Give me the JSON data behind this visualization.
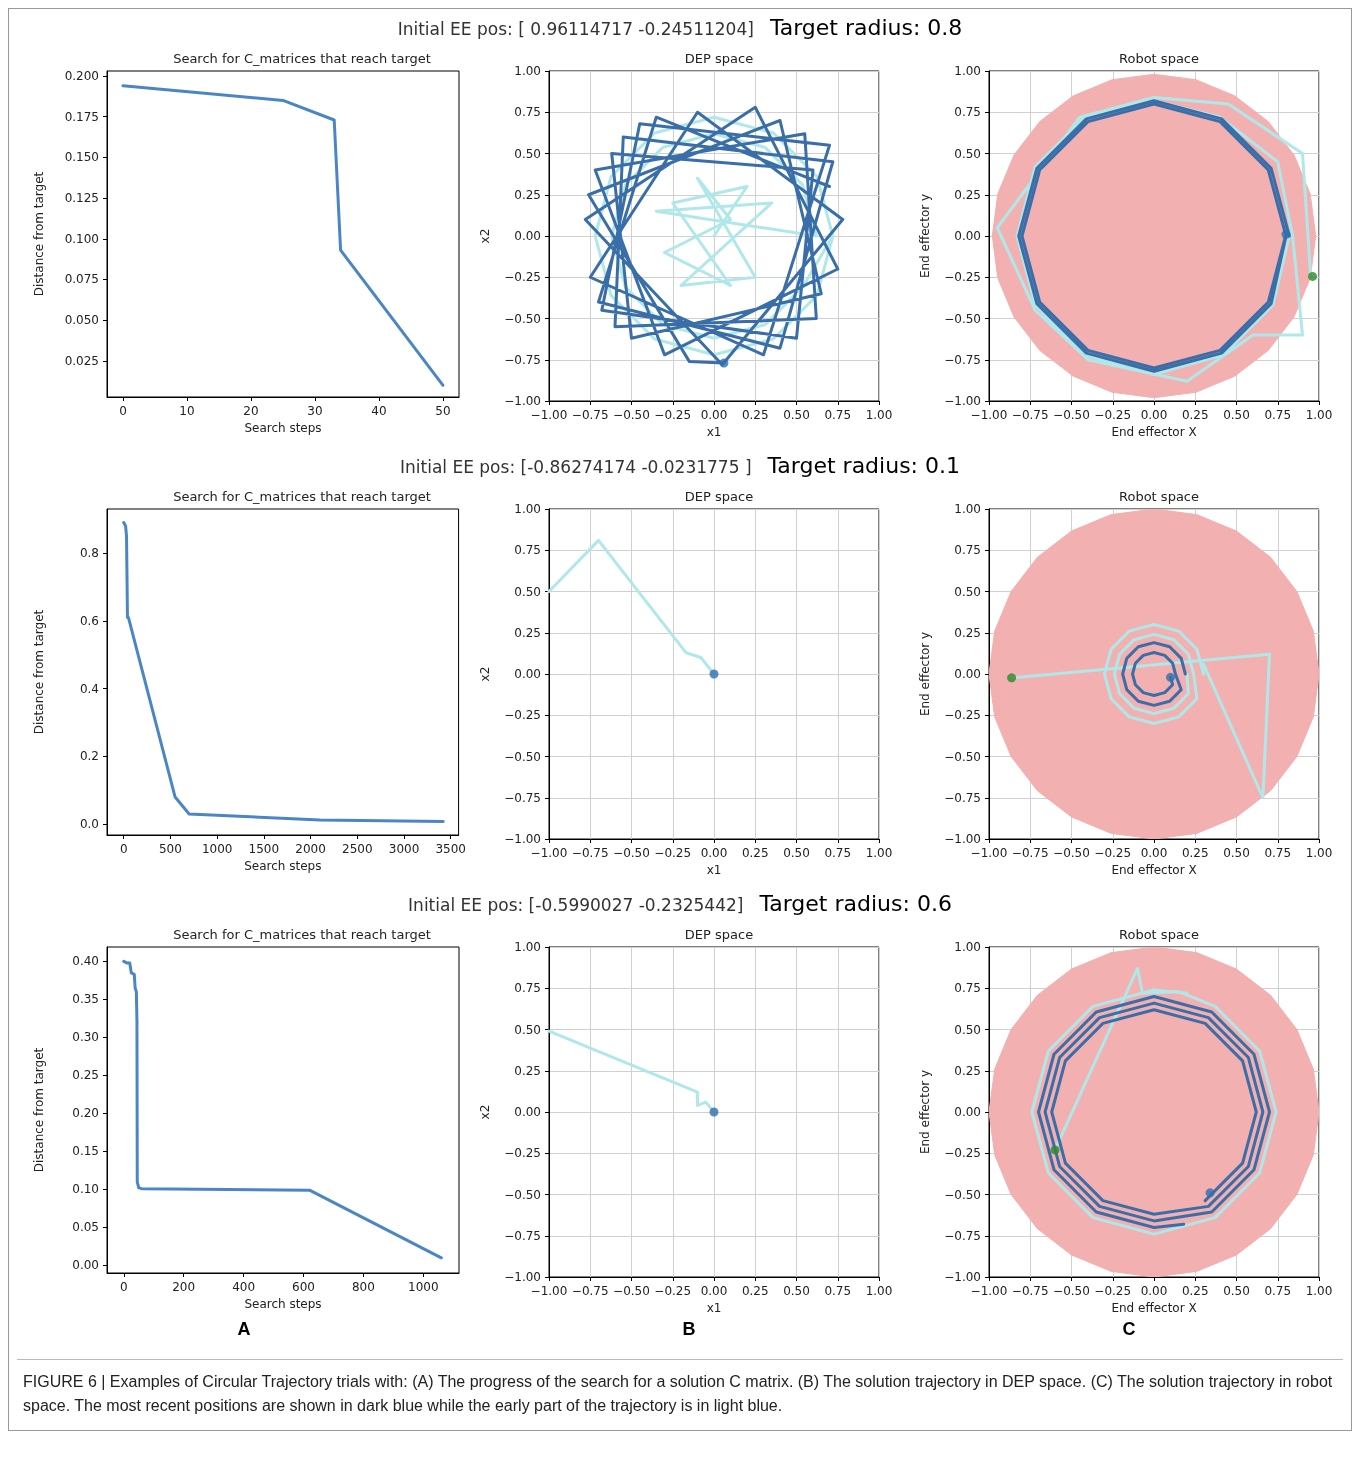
{
  "chart_data": [
    {
      "type": "line",
      "title": "Search for C_matrices that reach target",
      "xlabel": "Search steps",
      "ylabel": "Distance from target",
      "xlim": [
        -2.5,
        52.5
      ],
      "xticks": [
        0,
        10,
        20,
        30,
        40,
        50
      ],
      "ylim": [
        0.0028,
        0.2031
      ],
      "yticks": [
        0.025,
        {
          "value": 0.05,
          "label": "0.050"
        },
        0.075,
        {
          "value": 0.1,
          "label": "0.100"
        },
        0.125,
        {
          "value": 0.15,
          "label": "0.150"
        },
        0.175,
        {
          "value": 0.2,
          "label": "0.200"
        }
      ],
      "annotations": [
        "Initial EE pos: [ 0.96114717 -0.24511204]",
        "Target radius: 0.8"
      ],
      "series": [
        {
          "color": "#4b86c4",
          "x": [
            0,
            25,
            33,
            34,
            50
          ],
          "values": [
            0.194,
            0.185,
            0.173,
            0.093,
            0.01
          ]
        }
      ]
    },
    {
      "type": "line",
      "title": "DEP space",
      "xlabel": "x1",
      "ylabel": "x2",
      "grid": true,
      "xlim": [
        -1,
        1
      ],
      "xticks": [
        {
          "value": -1,
          "label": "−1.00"
        },
        {
          "value": -0.75,
          "label": "−0.75"
        },
        {
          "value": -0.5,
          "label": "−0.50"
        },
        {
          "value": -0.25,
          "label": "−0.25"
        },
        {
          "value": 0,
          "label": "0.00"
        },
        0.25,
        {
          "value": 0.5,
          "label": "0.50"
        },
        0.75,
        {
          "value": 1,
          "label": "1.00"
        }
      ],
      "ylim": [
        -1,
        1
      ],
      "yticks": [
        {
          "value": -1,
          "label": "−1.00"
        },
        {
          "value": -0.75,
          "label": "−0.75"
        },
        {
          "value": -0.5,
          "label": "−0.50"
        },
        {
          "value": -0.25,
          "label": "−0.25"
        },
        {
          "value": 0,
          "label": "0.00"
        },
        0.25,
        {
          "value": 0.5,
          "label": "0.50"
        },
        0.75,
        {
          "value": 1,
          "label": "1.00"
        }
      ],
      "series": [
        {
          "color": "#b0e8ea",
          "x": [
            0,
            0.2,
            -0.25,
            0.1,
            -0.3,
            0.1,
            -0.1,
            0.25,
            -0.2,
            0.35,
            -0.35,
            0.62,
            0.537,
            0.31,
            0,
            -0.31,
            -0.537,
            -0.62,
            -0.537,
            -0.31,
            0,
            0.31,
            0.537,
            0.72,
            0.624,
            0.36,
            0,
            -0.36,
            -0.624,
            -0.72,
            -0.624,
            -0.36,
            0,
            0.36,
            0.624,
            0.72
          ],
          "values": [
            0,
            0.3,
            0.2,
            -0.3,
            -0.1,
            0.1,
            0.35,
            -0.25,
            -0.3,
            0.2,
            0.15,
            0,
            0.31,
            0.537,
            0.62,
            0.537,
            0.31,
            0,
            -0.31,
            -0.537,
            -0.62,
            -0.537,
            -0.31,
            0,
            0.36,
            0.624,
            0.72,
            0.624,
            0.36,
            0,
            -0.36,
            -0.624,
            -0.72,
            -0.624,
            -0.36,
            0
          ]
        },
        {
          "color": "#3a6ea8",
          "x": [
            0.7,
            -0.35,
            -0.7,
            0.4,
            0.72,
            -0.55,
            -0.6,
            0.62,
            0.55,
            -0.72,
            -0.3,
            0.75,
            0.25,
            -0.78,
            0.05,
            0.78,
            -0.1,
            -0.75,
            0.3,
            0.7,
            -0.45,
            -0.68,
            0.5,
            0.6,
            -0.62,
            -0.5,
            0.65,
            0.4,
            -0.76,
            -0.15,
            0.06
          ],
          "values": [
            0.3,
            0.72,
            -0.4,
            -0.68,
            0.45,
            0.6,
            -0.55,
            -0.5,
            0.62,
            0.4,
            -0.72,
            -0.2,
            0.78,
            0.1,
            -0.78,
            0.1,
            0.75,
            -0.25,
            -0.72,
            0.55,
            0.68,
            -0.45,
            -0.62,
            0.4,
            0.5,
            -0.62,
            -0.35,
            0.7,
            0.25,
            -0.76,
            -0.77
          ]
        },
        {
          "type": "scatter",
          "marker": "circle",
          "color": "#2f6fb0",
          "x": [
            0.06
          ],
          "values": [
            -0.77
          ]
        }
      ]
    },
    {
      "type": "line",
      "title": "Robot space",
      "xlabel": "End effector X",
      "ylabel": "End effector y",
      "grid": true,
      "xlim": [
        -1,
        1
      ],
      "xticks": [
        {
          "value": -1,
          "label": "−1.00"
        },
        {
          "value": -0.75,
          "label": "−0.75"
        },
        {
          "value": -0.5,
          "label": "−0.50"
        },
        {
          "value": -0.25,
          "label": "−0.25"
        },
        {
          "value": 0,
          "label": "0.00"
        },
        0.25,
        {
          "value": 0.5,
          "label": "0.50"
        },
        0.75,
        {
          "value": 1,
          "label": "1.00"
        }
      ],
      "ylim": [
        -1,
        1
      ],
      "yticks": [
        {
          "value": -1,
          "label": "−1.00"
        },
        {
          "value": -0.75,
          "label": "−0.75"
        },
        {
          "value": -0.5,
          "label": "−0.50"
        },
        {
          "value": -0.25,
          "label": "−0.25"
        },
        {
          "value": 0,
          "label": "0.00"
        },
        0.25,
        {
          "value": 0.5,
          "label": "0.50"
        },
        0.75,
        {
          "value": 1,
          "label": "1.00"
        }
      ],
      "series": [
        {
          "type": "area",
          "color": "#f3b0b0",
          "x": [
            0.98,
            0.947,
            0.849,
            0.693,
            0.49,
            0.254,
            0,
            -0.254,
            -0.49,
            -0.693,
            -0.849,
            -0.947,
            -0.98,
            -0.947,
            -0.849,
            -0.693,
            -0.49,
            -0.254,
            0,
            0.254,
            0.49,
            0.693,
            0.849,
            0.947
          ],
          "values": [
            0,
            0.254,
            0.49,
            0.693,
            0.849,
            0.947,
            0.98,
            0.947,
            0.849,
            0.693,
            0.49,
            0.254,
            0,
            -0.254,
            -0.49,
            -0.693,
            -0.849,
            -0.947,
            -0.98,
            -0.947,
            -0.849,
            -0.693,
            -0.49,
            -0.254
          ]
        },
        {
          "color": "#b0e8ea",
          "x": [
            0.95,
            0.9,
            0.45,
            0,
            -0.45,
            -0.95,
            -0.72,
            -0.4,
            0.2,
            0.6,
            0.9,
            0.84,
            0.75,
            0.4,
            0,
            -0.42,
            -0.72,
            -0.83,
            -0.72,
            -0.42,
            0,
            0.42,
            0.72,
            0.82
          ],
          "values": [
            -0.25,
            0.5,
            0.8,
            0.84,
            0.72,
            0.05,
            -0.45,
            -0.75,
            -0.88,
            -0.6,
            -0.6,
            0,
            0.45,
            0.72,
            0.82,
            0.72,
            0.42,
            0,
            -0.42,
            -0.72,
            -0.84,
            -0.72,
            -0.42,
            0
          ]
        },
        {
          "color": "#3a6ea8",
          "x": [
            0.82,
            0.71,
            0.41,
            0,
            -0.41,
            -0.71,
            -0.82,
            -0.71,
            -0.41,
            0,
            0.41,
            0.71,
            0.8,
            0.693,
            0.4,
            0,
            -0.4,
            -0.693,
            -0.8,
            -0.693,
            -0.4,
            0,
            0.4,
            0.693,
            0.8
          ],
          "values": [
            0,
            0.41,
            0.71,
            0.82,
            0.71,
            0.41,
            0,
            -0.41,
            -0.71,
            -0.82,
            -0.71,
            -0.41,
            0,
            0.4,
            0.693,
            0.8,
            0.693,
            0.4,
            0,
            -0.4,
            -0.693,
            -0.8,
            -0.693,
            -0.4,
            0.01
          ]
        },
        {
          "type": "scatter",
          "marker": "circle",
          "color": "#2f6fb0",
          "x": [
            0.8
          ],
          "values": [
            0.01
          ]
        },
        {
          "type": "scatter",
          "marker": "circle",
          "color": "#2c8a2c",
          "x": [
            0.961
          ],
          "values": [
            -0.245
          ]
        }
      ]
    },
    {
      "type": "line",
      "title": "Search for C_matrices that reach target",
      "xlabel": "Search steps",
      "ylabel": "Distance from target",
      "xlim": [
        -179,
        3584
      ],
      "xticks": [
        0,
        500,
        1000,
        1500,
        2000,
        2500,
        3000,
        3500
      ],
      "ylim": [
        -0.032,
        0.93
      ],
      "yticks": [
        {
          "value": 0,
          "label": "0.0"
        },
        0.2,
        0.4,
        0.6,
        0.8
      ],
      "annotations": [
        "Initial EE pos: [-0.86274174 -0.0231775 ]",
        "Target radius: 0.1"
      ],
      "series": [
        {
          "color": "#4b86c4",
          "x": [
            0,
            20,
            30,
            40,
            50,
            550,
            700,
            2100,
            3420
          ],
          "values": [
            0.89,
            0.88,
            0.85,
            0.61,
            0.61,
            0.08,
            0.03,
            0.012,
            0.008
          ]
        }
      ]
    },
    {
      "type": "line",
      "title": "DEP space",
      "xlabel": "x1",
      "ylabel": "x2",
      "grid": true,
      "xlim": [
        -1,
        1
      ],
      "xticks": [
        {
          "value": -1,
          "label": "−1.00"
        },
        {
          "value": -0.75,
          "label": "−0.75"
        },
        {
          "value": -0.5,
          "label": "−0.50"
        },
        {
          "value": -0.25,
          "label": "−0.25"
        },
        {
          "value": 0,
          "label": "0.00"
        },
        0.25,
        {
          "value": 0.5,
          "label": "0.50"
        },
        0.75,
        {
          "value": 1,
          "label": "1.00"
        }
      ],
      "ylim": [
        -1,
        1
      ],
      "yticks": [
        {
          "value": -1,
          "label": "−1.00"
        },
        {
          "value": -0.75,
          "label": "−0.75"
        },
        {
          "value": -0.5,
          "label": "−0.50"
        },
        {
          "value": -0.25,
          "label": "−0.25"
        },
        {
          "value": 0,
          "label": "0.00"
        },
        0.25,
        {
          "value": 0.5,
          "label": "0.50"
        },
        0.75,
        {
          "value": 1,
          "label": "1.00"
        }
      ],
      "series": [
        {
          "color": "#b0e8ea",
          "x": [
            -1,
            -0.7,
            -0.17,
            -0.08,
            0
          ],
          "values": [
            0.5,
            0.81,
            0.13,
            0.1,
            0
          ]
        },
        {
          "type": "scatter",
          "marker": "circle",
          "color": "#2f6fb0",
          "x": [
            0
          ],
          "values": [
            0
          ]
        }
      ]
    },
    {
      "type": "line",
      "title": "Robot space",
      "xlabel": "End effector X",
      "ylabel": "End effector y",
      "grid": true,
      "xlim": [
        -1,
        1
      ],
      "xticks": [
        {
          "value": -1,
          "label": "−1.00"
        },
        {
          "value": -0.75,
          "label": "−0.75"
        },
        {
          "value": -0.5,
          "label": "−0.50"
        },
        {
          "value": -0.25,
          "label": "−0.25"
        },
        {
          "value": 0,
          "label": "0.00"
        },
        0.25,
        {
          "value": 0.5,
          "label": "0.50"
        },
        0.75,
        {
          "value": 1,
          "label": "1.00"
        }
      ],
      "ylim": [
        -1,
        1
      ],
      "yticks": [
        {
          "value": -1,
          "label": "−1.00"
        },
        {
          "value": -0.75,
          "label": "−0.75"
        },
        {
          "value": -0.5,
          "label": "−0.50"
        },
        {
          "value": -0.25,
          "label": "−0.25"
        },
        {
          "value": 0,
          "label": "0.00"
        },
        0.25,
        {
          "value": 0.5,
          "label": "0.50"
        },
        0.75,
        {
          "value": 1,
          "label": "1.00"
        }
      ],
      "series": [
        {
          "type": "area",
          "color": "#f3b0b0",
          "x": [
            1,
            0.966,
            0.866,
            0.707,
            0.5,
            0.259,
            0,
            -0.259,
            -0.5,
            -0.707,
            -0.866,
            -0.966,
            -1,
            -0.966,
            -0.866,
            -0.707,
            -0.5,
            -0.259,
            0,
            0.259,
            0.5,
            0.707,
            0.866,
            0.966
          ],
          "values": [
            0,
            0.259,
            0.5,
            0.707,
            0.866,
            0.966,
            1,
            0.966,
            0.866,
            0.707,
            0.5,
            0.259,
            0,
            -0.259,
            -0.5,
            -0.707,
            -0.866,
            -0.966,
            -1,
            -0.966,
            -0.866,
            -0.707,
            -0.5,
            -0.259
          ]
        },
        {
          "color": "#b0e8ea",
          "x": [
            -0.863,
            0.7,
            0.66,
            0.3,
            0.3,
            0.26,
            0.15,
            0,
            -0.15,
            -0.26,
            -0.3,
            -0.26,
            -0.15,
            0,
            0.15,
            0.26,
            0.24,
            0.208,
            0.12,
            0,
            -0.12,
            -0.208,
            -0.24,
            -0.208,
            -0.12,
            0,
            0.12,
            0.208,
            0.2
          ],
          "values": [
            -0.023,
            0.12,
            -0.75,
            0.06,
            0,
            0.15,
            0.26,
            0.3,
            0.26,
            0.15,
            0,
            -0.15,
            -0.26,
            -0.3,
            -0.26,
            -0.15,
            0,
            0.12,
            0.208,
            0.24,
            0.208,
            0.12,
            0,
            -0.12,
            -0.208,
            -0.24,
            -0.208,
            -0.12,
            0
          ]
        },
        {
          "color": "#3a6ea8",
          "x": [
            0.19,
            0.165,
            0.095,
            0,
            -0.095,
            -0.165,
            -0.19,
            -0.165,
            -0.095,
            0,
            0.095,
            0.165,
            0.13,
            0.113,
            0.065,
            0,
            -0.065,
            -0.113,
            -0.13,
            -0.113,
            -0.065,
            0,
            0.065,
            0.113,
            0.1
          ],
          "values": [
            0,
            0.095,
            0.165,
            0.19,
            0.165,
            0.095,
            0,
            -0.095,
            -0.165,
            -0.19,
            -0.165,
            -0.095,
            0,
            0.065,
            0.113,
            0.13,
            0.113,
            0.065,
            0,
            -0.065,
            -0.113,
            -0.13,
            -0.113,
            -0.065,
            -0.02
          ]
        },
        {
          "type": "scatter",
          "marker": "circle",
          "color": "#2f6fb0",
          "x": [
            0.1
          ],
          "values": [
            -0.02
          ]
        },
        {
          "type": "scatter",
          "marker": "circle",
          "color": "#2c8a2c",
          "x": [
            -0.863
          ],
          "values": [
            -0.023
          ]
        }
      ]
    },
    {
      "type": "line",
      "title": "Search for C_matrices that reach target",
      "xlabel": "Search steps",
      "ylabel": "Distance from target",
      "xlim": [
        -56,
        1119
      ],
      "xticks": [
        0,
        200,
        400,
        600,
        800,
        1000
      ],
      "ylim": [
        -0.01,
        0.419
      ],
      "yticks": [
        {
          "value": 0,
          "label": "0.00"
        },
        0.05,
        {
          "value": 0.1,
          "label": "0.10"
        },
        0.15,
        {
          "value": 0.2,
          "label": "0.20"
        },
        0.25,
        {
          "value": 0.3,
          "label": "0.30"
        },
        0.35,
        {
          "value": 0.4,
          "label": "0.40"
        }
      ],
      "annotations": [
        "Initial EE pos: [-0.5990027 -0.2325442]",
        "Target radius: 0.6",
        "A"
      ],
      "series": [
        {
          "color": "#4b86c4",
          "x": [
            0,
            10,
            20,
            25,
            35,
            38,
            42,
            44,
            45,
            50,
            60,
            620,
            1060
          ],
          "values": [
            0.4,
            0.398,
            0.398,
            0.385,
            0.383,
            0.365,
            0.36,
            0.32,
            0.11,
            0.102,
            0.101,
            0.099,
            0.01
          ]
        }
      ]
    },
    {
      "type": "line",
      "title": "DEP space",
      "xlabel": "x1",
      "ylabel": "x2",
      "grid": true,
      "xlim": [
        -1,
        1
      ],
      "xticks": [
        {
          "value": -1,
          "label": "−1.00"
        },
        {
          "value": -0.75,
          "label": "−0.75"
        },
        {
          "value": -0.5,
          "label": "−0.50"
        },
        {
          "value": -0.25,
          "label": "−0.25"
        },
        {
          "value": 0,
          "label": "0.00"
        },
        0.25,
        {
          "value": 0.5,
          "label": "0.50"
        },
        0.75,
        {
          "value": 1,
          "label": "1.00"
        }
      ],
      "ylim": [
        -1,
        1
      ],
      "yticks": [
        {
          "value": -1,
          "label": "−1.00"
        },
        {
          "value": -0.75,
          "label": "−0.75"
        },
        {
          "value": -0.5,
          "label": "−0.50"
        },
        {
          "value": -0.25,
          "label": "−0.25"
        },
        {
          "value": 0,
          "label": "0.00"
        },
        0.25,
        {
          "value": 0.5,
          "label": "0.50"
        },
        0.75,
        {
          "value": 1,
          "label": "1.00"
        }
      ],
      "annotations": [
        "B"
      ],
      "series": [
        {
          "color": "#b0e8ea",
          "x": [
            -1,
            -0.1,
            -0.1,
            -0.05,
            0
          ],
          "values": [
            0.49,
            0.12,
            0.04,
            0.06,
            0
          ]
        },
        {
          "type": "scatter",
          "marker": "circle",
          "color": "#2f6fb0",
          "x": [
            0
          ],
          "values": [
            0
          ]
        }
      ]
    },
    {
      "type": "line",
      "title": "Robot space",
      "xlabel": "End effector X",
      "ylabel": "End effector y",
      "grid": true,
      "xlim": [
        -1,
        1
      ],
      "xticks": [
        {
          "value": -1,
          "label": "−1.00"
        },
        {
          "value": -0.75,
          "label": "−0.75"
        },
        {
          "value": -0.5,
          "label": "−0.50"
        },
        {
          "value": -0.25,
          "label": "−0.25"
        },
        {
          "value": 0,
          "label": "0.00"
        },
        0.25,
        {
          "value": 0.5,
          "label": "0.50"
        },
        0.75,
        {
          "value": 1,
          "label": "1.00"
        }
      ],
      "ylim": [
        -1,
        1
      ],
      "yticks": [
        {
          "value": -1,
          "label": "−1.00"
        },
        {
          "value": -0.75,
          "label": "−0.75"
        },
        {
          "value": -0.5,
          "label": "−0.50"
        },
        {
          "value": -0.25,
          "label": "−0.25"
        },
        {
          "value": 0,
          "label": "0.00"
        },
        0.25,
        {
          "value": 0.5,
          "label": "0.50"
        },
        0.75,
        {
          "value": 1,
          "label": "1.00"
        }
      ],
      "annotations": [
        "C",
        "FIGURE 6 | Examples of Circular Trajectory trials with: (A) The progress of the search for a solution C matrix. (B) The solution trajectory in DEP space. (C) The solution trajectory in robot space. The most recent positions are shown in dark blue while the early part of the trajectory is in light blue."
      ],
      "series": [
        {
          "type": "area",
          "color": "#f3b0b0",
          "x": [
            1,
            0.966,
            0.866,
            0.707,
            0.5,
            0.259,
            0,
            -0.259,
            -0.5,
            -0.707,
            -0.866,
            -0.966,
            -1,
            -0.966,
            -0.866,
            -0.707,
            -0.5,
            -0.259,
            0,
            0.259,
            0.5,
            0.707,
            0.866,
            0.966
          ],
          "values": [
            0,
            0.259,
            0.5,
            0.707,
            0.866,
            0.966,
            1,
            0.966,
            0.866,
            0.707,
            0.5,
            0.259,
            0,
            -0.259,
            -0.5,
            -0.707,
            -0.866,
            -0.966,
            -1,
            -0.966,
            -0.866,
            -0.707,
            -0.5,
            -0.259
          ]
        },
        {
          "color": "#b0e8ea",
          "x": [
            -0.6,
            -0.1,
            -0.07,
            0.15,
            0.37,
            0.64,
            0.74,
            0.64,
            0.37,
            0,
            -0.37,
            -0.64,
            -0.74,
            -0.64,
            -0.37,
            0,
            0.2
          ],
          "values": [
            -0.23,
            0.87,
            0.72,
            0.73,
            0.64,
            0.37,
            0,
            -0.37,
            -0.64,
            -0.74,
            -0.64,
            -0.37,
            0,
            0.37,
            0.64,
            0.74,
            0.72
          ]
        },
        {
          "color": "#3a6ea8",
          "x": [
            0.31,
            0.537,
            0.62,
            0.537,
            0.31,
            0,
            -0.31,
            -0.537,
            -0.62,
            -0.537,
            -0.31,
            0,
            0.33,
            0.572,
            0.66,
            0.572,
            0.33,
            0,
            -0.33,
            -0.572,
            -0.66,
            -0.572,
            -0.33,
            0,
            0.35,
            0.606,
            0.7,
            0.606,
            0.35,
            0,
            -0.35,
            -0.606,
            -0.7,
            -0.606,
            -0.35,
            0,
            0.18
          ],
          "values": [
            -0.537,
            -0.31,
            0,
            0.31,
            0.537,
            0.62,
            0.537,
            0.31,
            0,
            -0.31,
            -0.537,
            -0.62,
            -0.572,
            -0.33,
            0,
            0.33,
            0.572,
            0.66,
            0.572,
            0.33,
            0,
            -0.33,
            -0.572,
            -0.66,
            -0.606,
            -0.35,
            0,
            0.35,
            0.606,
            0.7,
            0.606,
            0.35,
            0,
            -0.35,
            -0.606,
            -0.7,
            -0.68
          ]
        },
        {
          "type": "scatter",
          "marker": "circle",
          "color": "#2f6fb0",
          "x": [
            0.34
          ],
          "values": [
            -0.49
          ]
        },
        {
          "type": "scatter",
          "marker": "circle",
          "color": "#2c8a2c",
          "x": [
            -0.6
          ],
          "values": [
            -0.23
          ]
        }
      ]
    }
  ]
}
